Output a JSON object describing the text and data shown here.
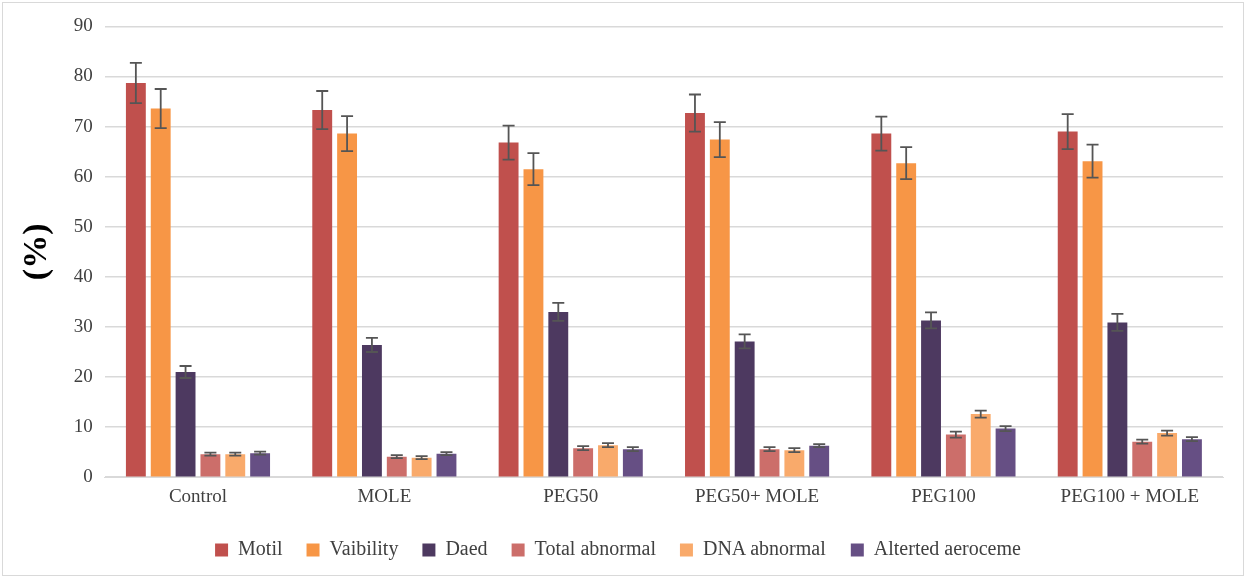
{
  "chart_data": {
    "type": "bar",
    "ylabel": "(%)",
    "categories": [
      "Control",
      "MOLE",
      "PEG50",
      "PEG50+ MOLE",
      "PEG100",
      "PEG100 + MOLE"
    ],
    "series": [
      {
        "name": "Motil",
        "color": "#c0504d",
        "values": [
          78.7,
          73.3,
          66.8,
          72.7,
          68.6,
          69.0
        ],
        "errors": [
          4.0,
          3.8,
          3.4,
          3.7,
          3.4,
          3.5
        ]
      },
      {
        "name": "Vaibility",
        "color": "#f79646",
        "values": [
          73.6,
          68.6,
          61.5,
          67.4,
          62.7,
          63.1
        ],
        "errors": [
          3.9,
          3.5,
          3.2,
          3.5,
          3.2,
          3.3
        ]
      },
      {
        "name": "Daed",
        "color": "#4d3960",
        "values": [
          21.0,
          26.4,
          33.0,
          27.1,
          31.3,
          30.9
        ],
        "errors": [
          1.2,
          1.4,
          1.8,
          1.4,
          1.6,
          1.7
        ]
      },
      {
        "name": "Total abnormal",
        "color": "#cc6e6a",
        "values": [
          4.6,
          4.1,
          5.8,
          5.6,
          8.5,
          7.1
        ],
        "errors": [
          0.3,
          0.3,
          0.4,
          0.4,
          0.6,
          0.4
        ]
      },
      {
        "name": "DNA abnormal",
        "color": "#f9aa6b",
        "values": [
          4.6,
          3.9,
          6.4,
          5.4,
          12.6,
          8.8
        ],
        "errors": [
          0.3,
          0.3,
          0.4,
          0.4,
          0.7,
          0.5
        ]
      },
      {
        "name": "Alterted aeroceme",
        "color": "#664f84",
        "values": [
          4.8,
          4.7,
          5.6,
          6.3,
          9.7,
          7.6
        ],
        "errors": [
          0.3,
          0.3,
          0.4,
          0.3,
          0.5,
          0.4
        ]
      }
    ],
    "ylim": [
      0,
      90
    ],
    "yticks": [
      0,
      10,
      20,
      30,
      40,
      50,
      60,
      70,
      80,
      90
    ],
    "grid": "y",
    "legend": "bottom"
  }
}
